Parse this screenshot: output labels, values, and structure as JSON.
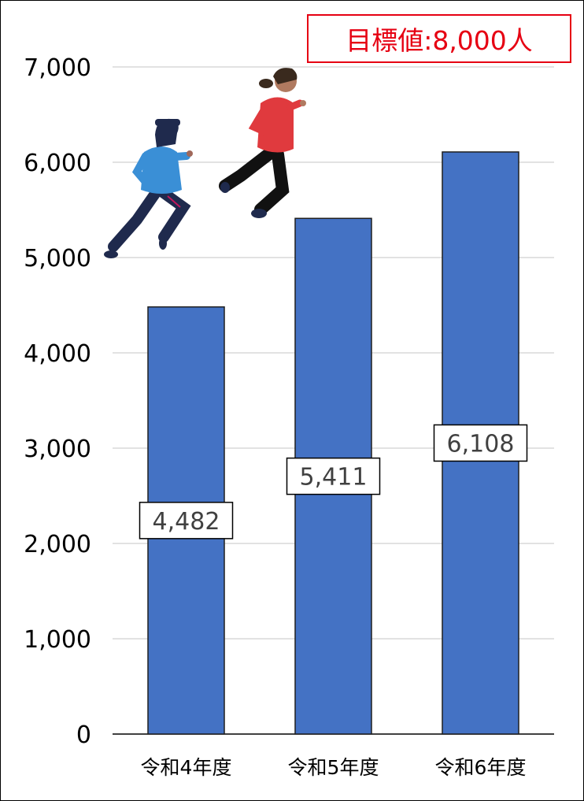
{
  "chart_data": {
    "type": "bar",
    "categories": [
      "令和4年度",
      "令和5年度",
      "令和6年度"
    ],
    "values": [
      4482,
      5411,
      6108
    ],
    "data_labels": [
      "4,482",
      "5,411",
      "6,108"
    ],
    "ylim": [
      0,
      7000
    ],
    "yticks": [
      0,
      1000,
      2000,
      3000,
      4000,
      5000,
      6000,
      7000
    ],
    "ytick_labels": [
      "0",
      "1,000",
      "2,000",
      "3,000",
      "4,000",
      "5,000",
      "6,000",
      "7,000"
    ],
    "grid": true,
    "bar_color": "#4472c4",
    "annotation": "目標値:8,000人",
    "annotation_color": "#e60012"
  },
  "illustrations": [
    "runner-blue-icon",
    "runner-red-icon"
  ]
}
